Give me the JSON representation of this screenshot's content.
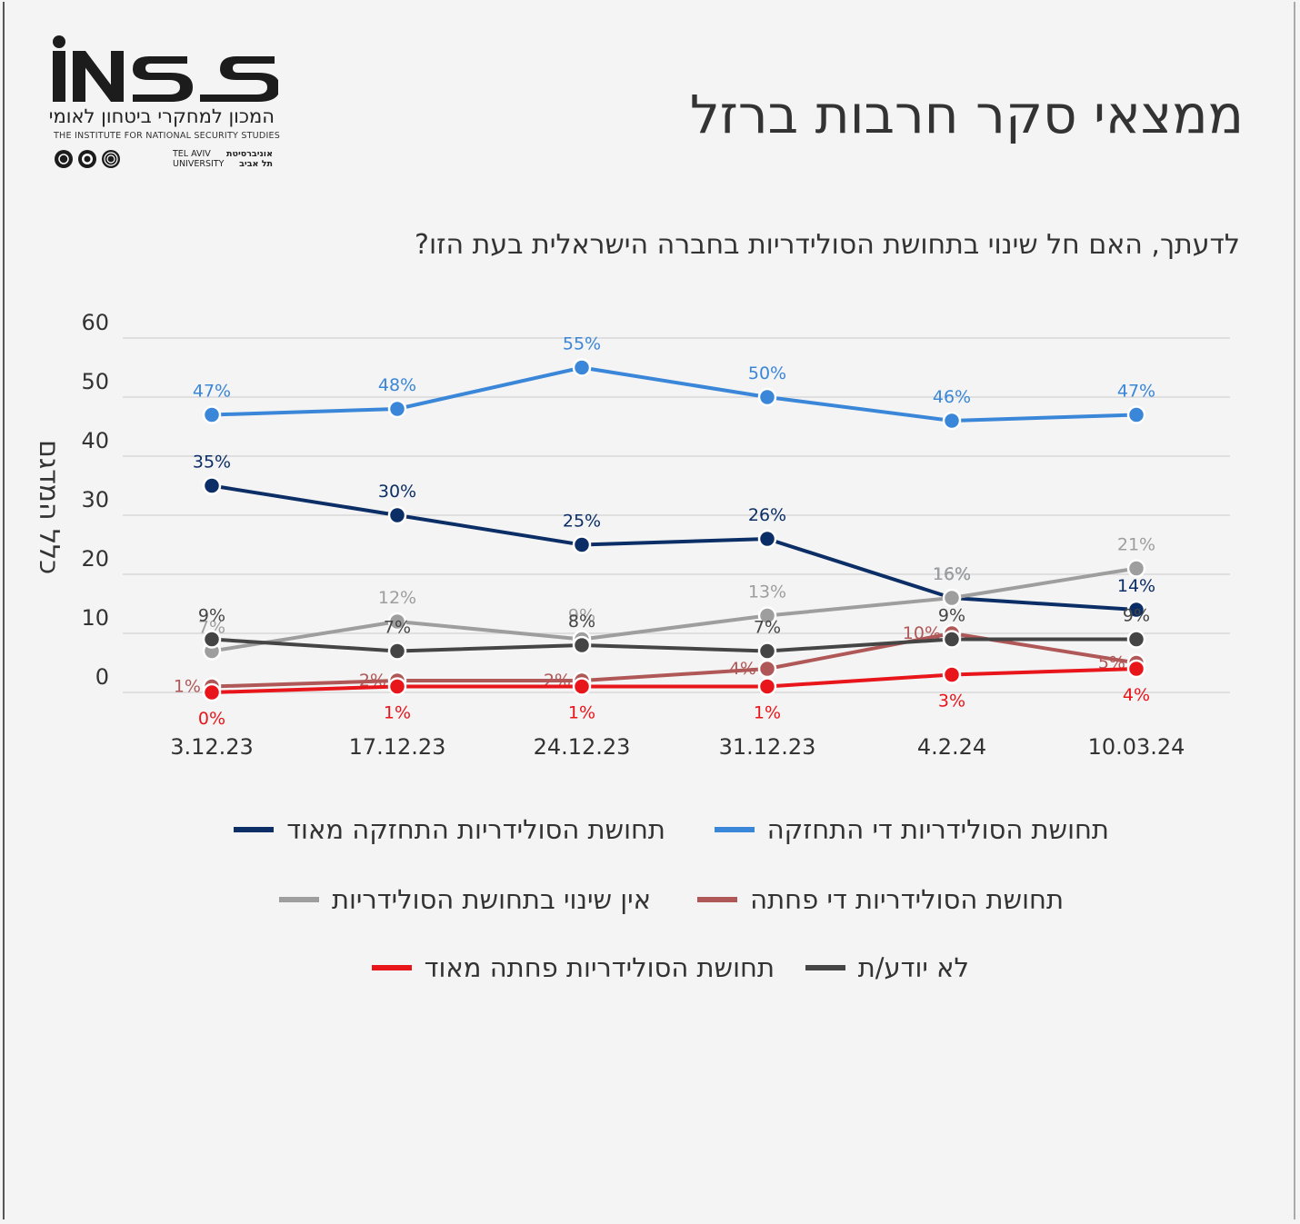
{
  "header": {
    "title": "ממצאי סקר חרבות ברזל",
    "question": "לדעתך, האם חל שינוי בתחושת הסולידריות בחברה הישראלית בעת הזו?"
  },
  "logo": {
    "wordmark": "INSS",
    "hebrew_name": "המכון למחקרי ביטחון לאומי",
    "english_name": "THE INSTITUTE FOR NATIONAL SECURITY STUDIES",
    "university_en_1": "TEL AVIV",
    "university_en_2": "UNIVERSITY",
    "university_he_1": "אוניברסיטת",
    "university_he_2": "תל אביב"
  },
  "chart_data": {
    "type": "line",
    "ylabel": "כלל המדגם",
    "xlabel": "",
    "ylim": [
      0,
      60
    ],
    "yticks": [
      0,
      10,
      20,
      30,
      40,
      50,
      60
    ],
    "grid": true,
    "legend_position": "bottom",
    "categories": [
      "3.12.23",
      "17.12.23",
      "24.12.23",
      "31.12.23",
      "4.2.24",
      "10.03.24"
    ],
    "series": [
      {
        "name": "תחושת הסולידריות די התחזקה",
        "color": "#3a86d8",
        "values": [
          47,
          48,
          55,
          50,
          46,
          47
        ],
        "labels": [
          "47%",
          "48%",
          "55%",
          "50%",
          "46%",
          "47%"
        ]
      },
      {
        "name": "תחושת הסולידריות התחזקה מאוד",
        "color": "#0c2e66",
        "values": [
          35,
          30,
          25,
          26,
          16,
          14
        ],
        "labels": [
          "35%",
          "30%",
          "25%",
          "26%",
          "16%",
          "14%"
        ]
      },
      {
        "name": "אין שינוי בתחושת הסולידריות",
        "color": "#9e9e9e",
        "values": [
          7,
          12,
          9,
          13,
          16,
          21
        ],
        "labels": [
          "7%",
          "12%",
          "9%",
          "13%",
          "16%",
          "21%"
        ]
      },
      {
        "name": "תחושת הסולידריות די פחתה",
        "color": "#b05858",
        "values": [
          1,
          2,
          2,
          4,
          10,
          5
        ],
        "labels": [
          "1%",
          "2%",
          "2%",
          "4%",
          "10%",
          "5%"
        ]
      },
      {
        "name": "לא יודע/ת",
        "color": "#454545",
        "values": [
          9,
          7,
          8,
          7,
          9,
          9
        ],
        "labels": [
          "9%",
          "7%",
          "8%",
          "7%",
          "9%",
          "9%"
        ]
      },
      {
        "name": "תחושת הסולידריות פחתה מאוד",
        "color": "#e8151b",
        "values": [
          0,
          1,
          1,
          1,
          3,
          4
        ],
        "labels": [
          "0%",
          "1%",
          "1%",
          "1%",
          "3%",
          "4%"
        ]
      }
    ]
  }
}
